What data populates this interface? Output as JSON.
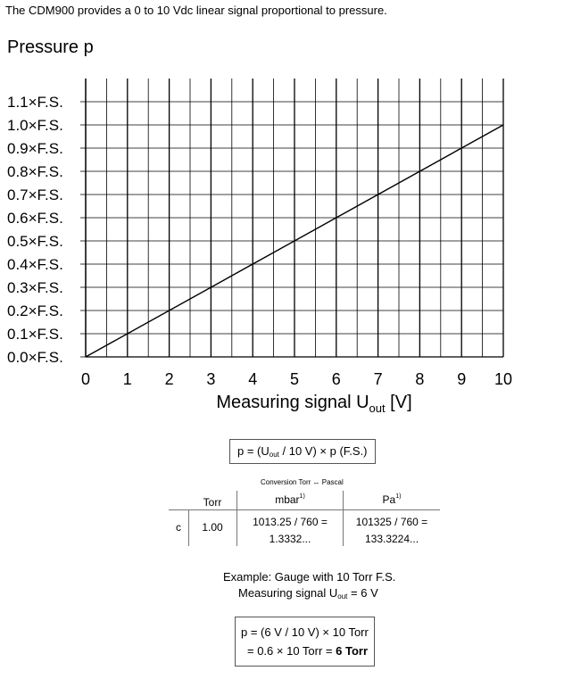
{
  "intro_text": "The CDM900 provides a 0 to 10 Vdc linear signal proportional to pressure.",
  "chart_data": {
    "type": "line",
    "ylabel": "Pressure p",
    "xlabel_main": "Measuring signal U",
    "xlabel_sub": "out",
    "xlabel_unit": " [V]",
    "x_ticks": [
      "0",
      "1",
      "2",
      "3",
      "4",
      "5",
      "6",
      "7",
      "8",
      "9",
      "10"
    ],
    "y_ticks": [
      "0.0×F.S.",
      "0.1×F.S.",
      "0.2×F.S.",
      "0.3×F.S.",
      "0.4×F.S.",
      "0.5×F.S.",
      "0.6×F.S.",
      "0.7×F.S.",
      "0.8×F.S.",
      "0.9×F.S.",
      "1.0×F.S.",
      "1.1×F.S."
    ],
    "xlim": [
      0,
      10
    ],
    "ylim": [
      0,
      1.2
    ],
    "grid": true,
    "series": [
      {
        "x": [
          0,
          10
        ],
        "y": [
          0.0,
          1.0
        ]
      }
    ]
  },
  "formula": {
    "prefix": "p = (U",
    "sub": "out",
    "suffix": " / 10 V) × p (F.S.)"
  },
  "conversion": {
    "title": "Conversion Torr ↔ Pascal",
    "headers": {
      "torr": "Torr",
      "mbar": "mbar",
      "pa": "Pa",
      "footnote": "1)"
    },
    "row_label": "c",
    "torr_value": "1.00",
    "mbar_line1": "1013.25 / 760 =",
    "mbar_line2": "1.3332...",
    "pa_line1": "101325 / 760 =",
    "pa_line2": "133.3224..."
  },
  "example": {
    "line1": "Example:   Gauge with 10 Torr F.S.",
    "line2_prefix": "Measuring signal U",
    "line2_sub": "out",
    "line2_suffix": " = 6 V"
  },
  "result": {
    "line1": "p = (6 V / 10 V) × 10 Torr",
    "line2_prefix": "= 0.6 × 10 Torr = ",
    "line2_bold": "6 Torr"
  }
}
